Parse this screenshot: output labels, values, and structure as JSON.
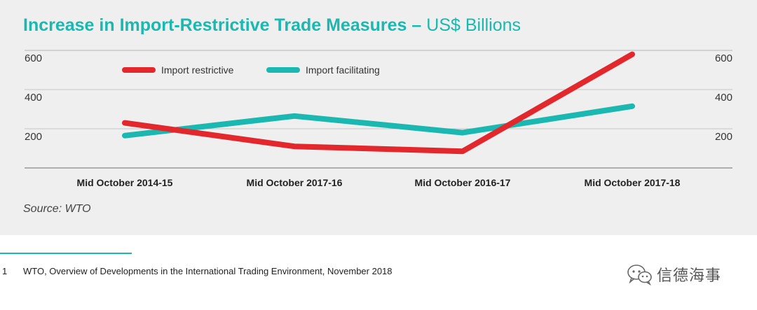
{
  "title_bold": "Increase in Import-Restrictive Trade Measures –",
  "title_light": "US$ Billions",
  "source": "Source: WTO",
  "footnote": {
    "number": "1",
    "text": "WTO, Overview of Developments in the International Trading Environment, November 2018"
  },
  "watermark": {
    "text": "信德海事",
    "icon": "wechat-icon"
  },
  "colors": {
    "accent": "#1ab8b0",
    "restrictive": "#e3282d",
    "facilitating": "#1ab8b0",
    "panel": "#efefef"
  },
  "chart_data": {
    "type": "line",
    "categories": [
      "Mid October 2014-15",
      "Mid October 2017-16",
      "Mid October 2016-17",
      "Mid October 2017-18"
    ],
    "series": [
      {
        "name": "Import restrictive",
        "color": "#e3282d",
        "values": [
          230,
          110,
          85,
          580
        ]
      },
      {
        "name": "Import facilitating",
        "color": "#1ab8b0",
        "values": [
          165,
          265,
          180,
          315
        ]
      }
    ],
    "y_ticks": [
      "200",
      "400",
      "600"
    ],
    "y_tick_values": [
      200,
      400,
      600
    ],
    "ylim": [
      0,
      600
    ],
    "legend_position": "top-left",
    "grid": true
  }
}
